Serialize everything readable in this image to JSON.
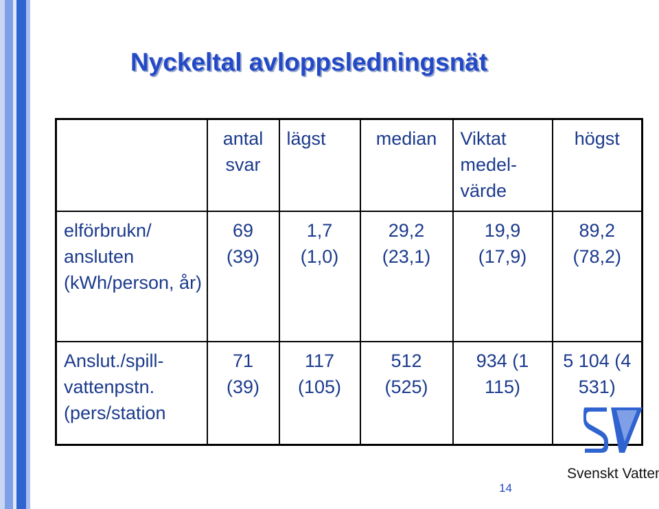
{
  "slide": {
    "title": "Nyckeltal avloppsledningsnät",
    "page_number": "14",
    "logo_text": "Svenskt Vatten"
  },
  "table": {
    "headers": [
      "",
      "antal svar",
      "lägst",
      "median",
      "Viktat medel- värde",
      "högst"
    ],
    "rows": [
      {
        "label": "elförbrukn/ ansluten (kWh/person, år)",
        "cells": [
          "69 (39)",
          "1,7 (1,0)",
          "29,2 (23,1)",
          "19,9 (17,9)",
          "89,2 (78,2)"
        ]
      },
      {
        "label": "Anslut./spill- vattenpstn. (pers/station",
        "cells": [
          "71 (39)",
          "117 (105)",
          "512 (525)",
          "934 (1 115)",
          "5 104 (4 531)"
        ]
      }
    ]
  },
  "colors": {
    "title": "#2349c6",
    "text": "#1b3a8c",
    "logo_blue": "#2f63cf"
  },
  "icons": [
    "svenskt-vatten-logo-icon"
  ]
}
